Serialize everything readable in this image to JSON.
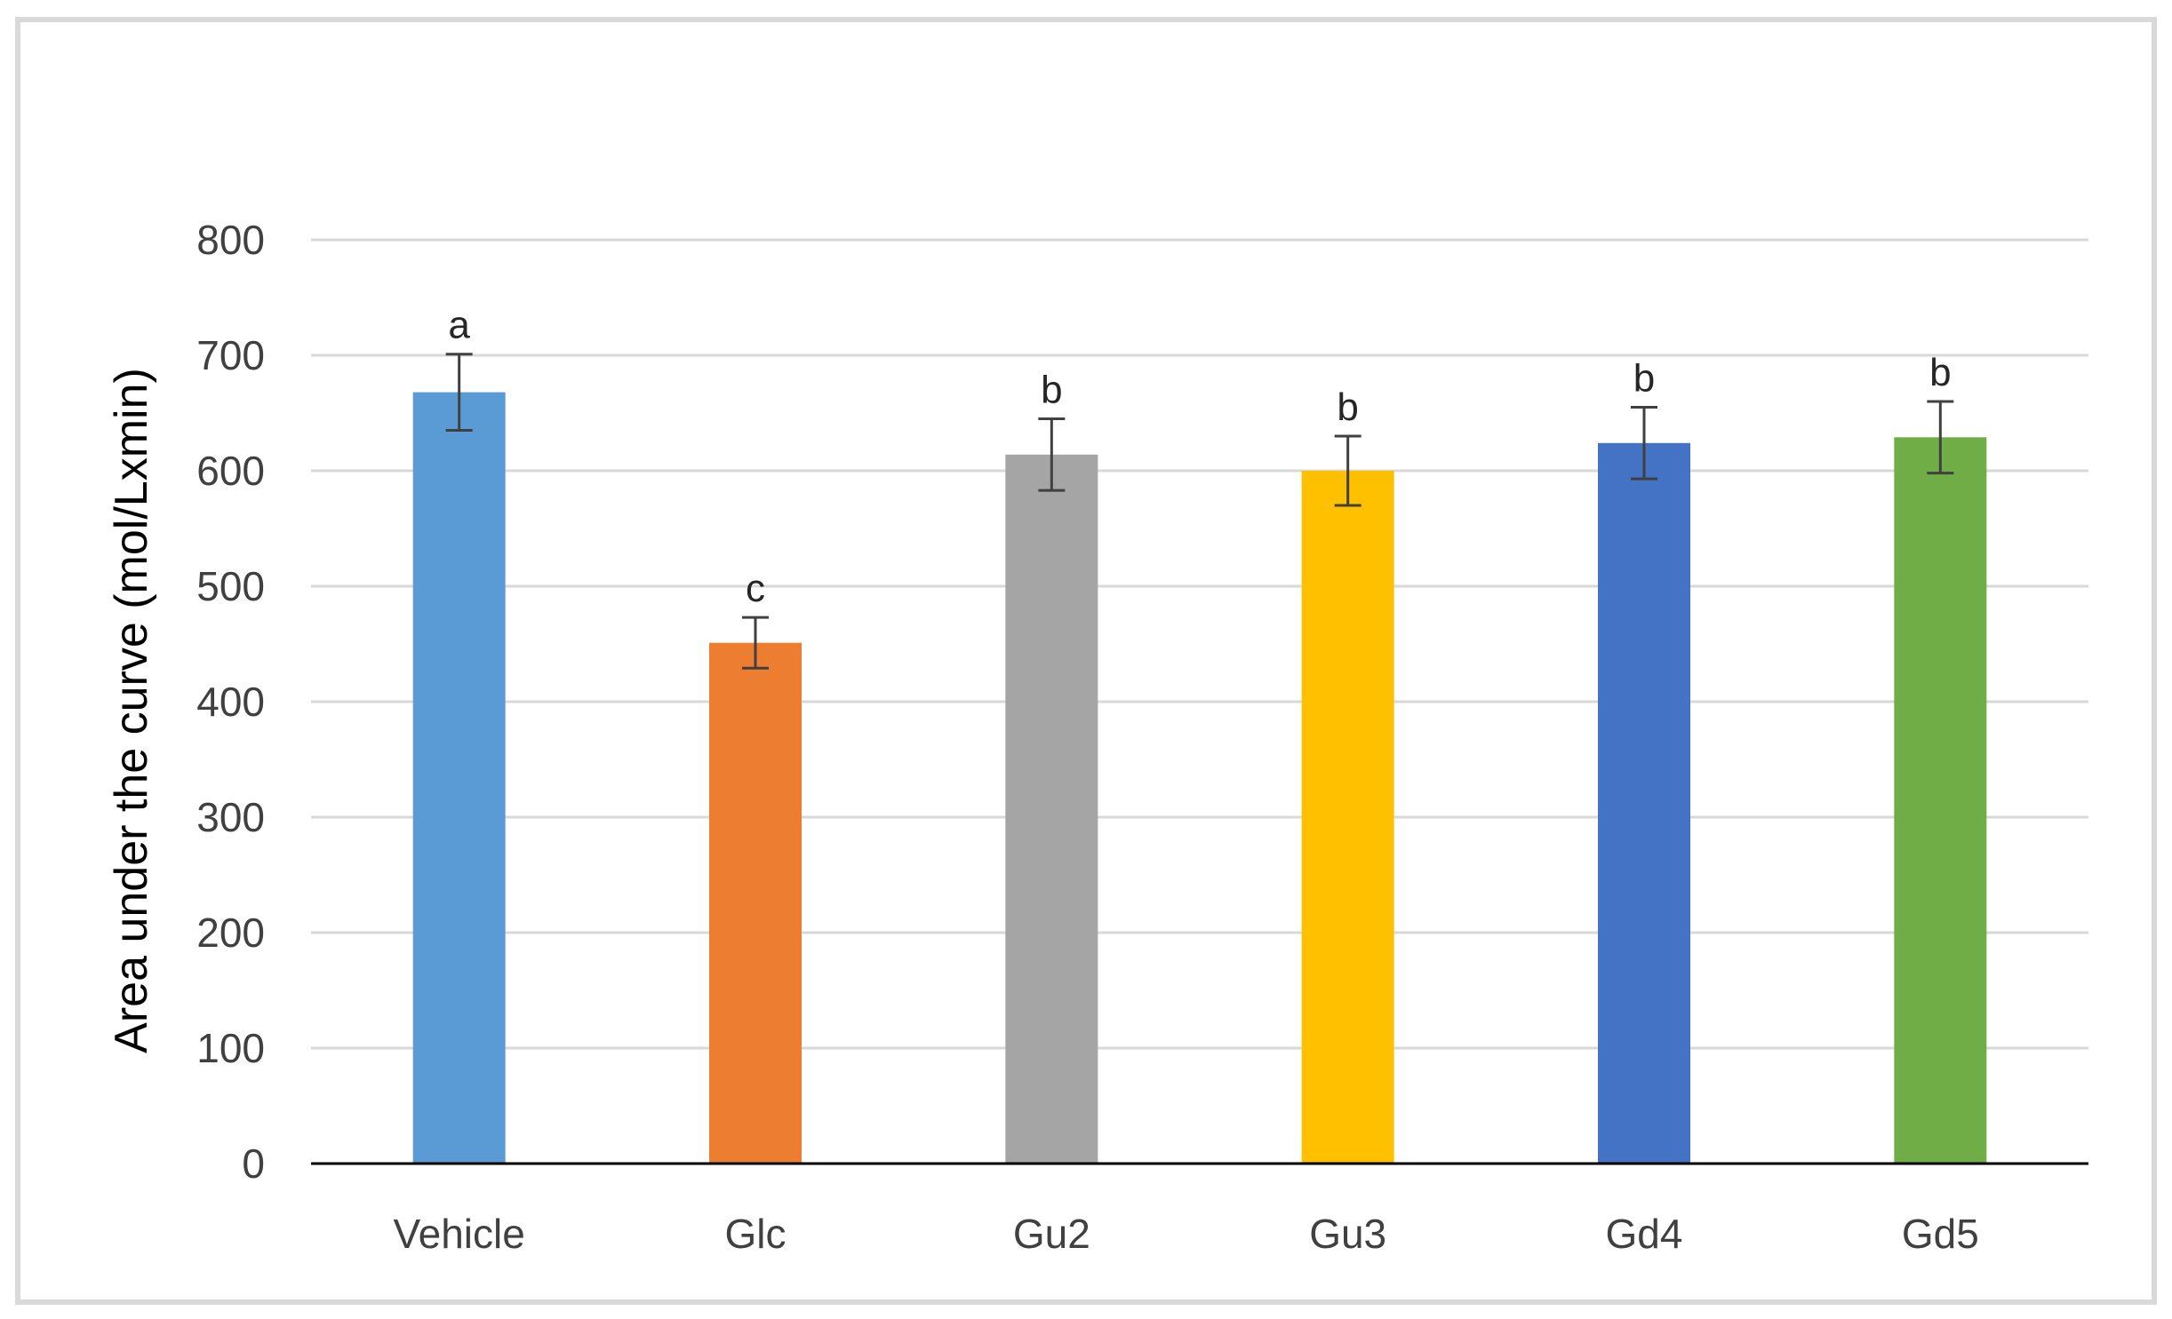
{
  "chart_data": {
    "type": "bar",
    "title": "",
    "xlabel": "",
    "ylabel": "Area under the curve (mol/Lxmin)",
    "ylim": [
      0,
      800
    ],
    "yticks": [
      0,
      100,
      200,
      300,
      400,
      500,
      600,
      700,
      800
    ],
    "grid": true,
    "legend": "none",
    "categories": [
      "Vehicle",
      "Glc",
      "Gu2",
      "Gu3",
      "Gd4",
      "Gd5"
    ],
    "values": [
      668,
      451,
      614,
      600,
      624,
      629
    ],
    "errors": [
      33,
      22,
      31,
      30,
      31,
      31
    ],
    "significance_labels": [
      "a",
      "c",
      "b",
      "b",
      "b",
      "b"
    ],
    "colors": [
      "#5b9bd5",
      "#ed7d31",
      "#a5a5a5",
      "#ffc000",
      "#4472c4",
      "#70ad47"
    ],
    "frame_color": "#d9d9d9",
    "grid_color": "#d9d9d9",
    "axis_color": "#000000",
    "error_bar_color": "#404040"
  }
}
